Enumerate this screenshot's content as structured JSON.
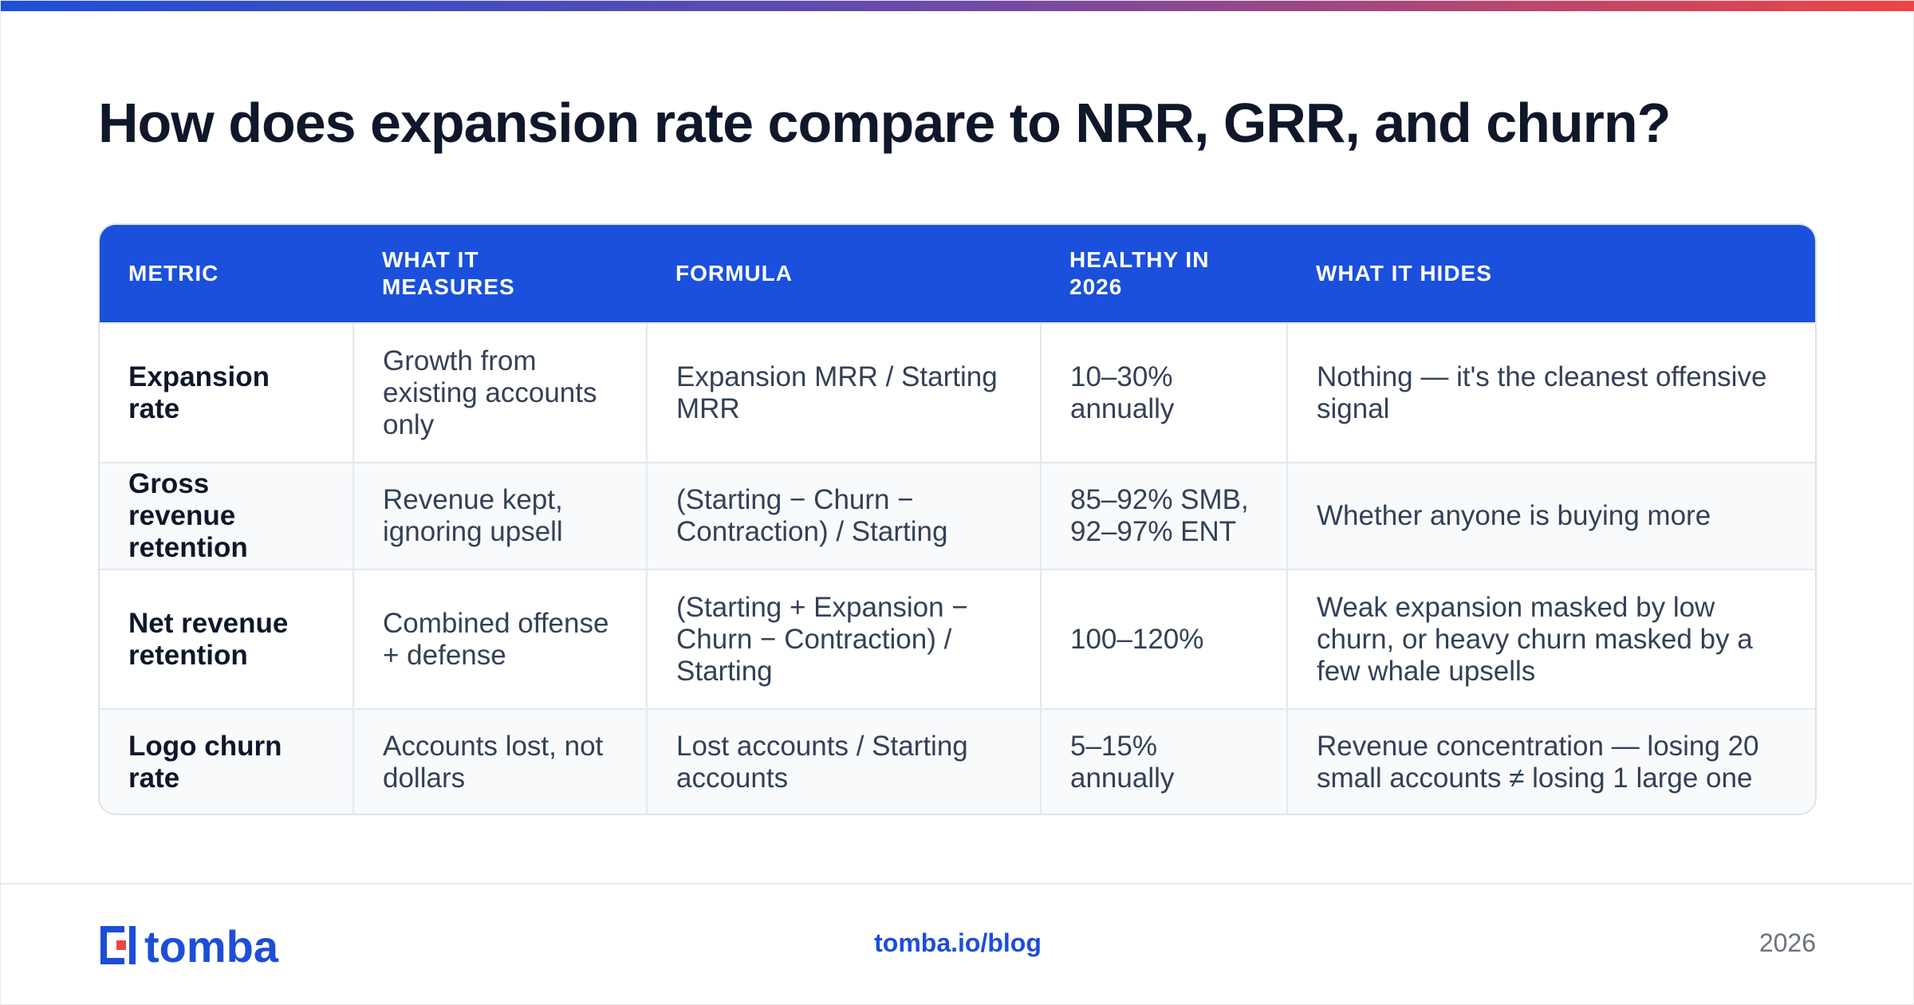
{
  "title": "How does expansion rate compare to NRR, GRR, and churn?",
  "table": {
    "headers": [
      "METRIC",
      "WHAT IT MEASURES",
      "FORMULA",
      "HEALTHY IN 2026",
      "WHAT IT HIDES"
    ],
    "rows": [
      {
        "metric": "Expansion rate",
        "measures": "Growth from existing accounts only",
        "formula": "Expansion MRR / Starting MRR",
        "healthy": "10–30% annually",
        "hides": "Nothing — it's the cleanest offensive signal"
      },
      {
        "metric": "Gross revenue retention",
        "measures": "Revenue kept, ignoring upsell",
        "formula": "(Starting − Churn − Contraction) / Starting",
        "healthy": "85–92% SMB, 92–97% ENT",
        "hides": "Whether anyone is buying more"
      },
      {
        "metric": "Net revenue retention",
        "measures": "Combined offense + defense",
        "formula": "(Starting + Expansion − Churn − Contraction) / Starting",
        "healthy": "100–120%",
        "hides": "Weak expansion masked by low churn, or heavy churn masked by a few whale upsells"
      },
      {
        "metric": "Logo churn rate",
        "measures": "Accounts lost, not dollars",
        "formula": "Lost accounts / Starting accounts",
        "healthy": "5–15% annually",
        "hides": "Revenue concentration — losing 20 small accounts ≠ losing 1 large one"
      }
    ]
  },
  "footer": {
    "logo_text": "tomba",
    "link": "tomba.io/blog",
    "year": "2026"
  },
  "colors": {
    "header_bg": "#1a50dc",
    "brand_blue": "#1d4ed8",
    "brand_red": "#ef4444"
  }
}
